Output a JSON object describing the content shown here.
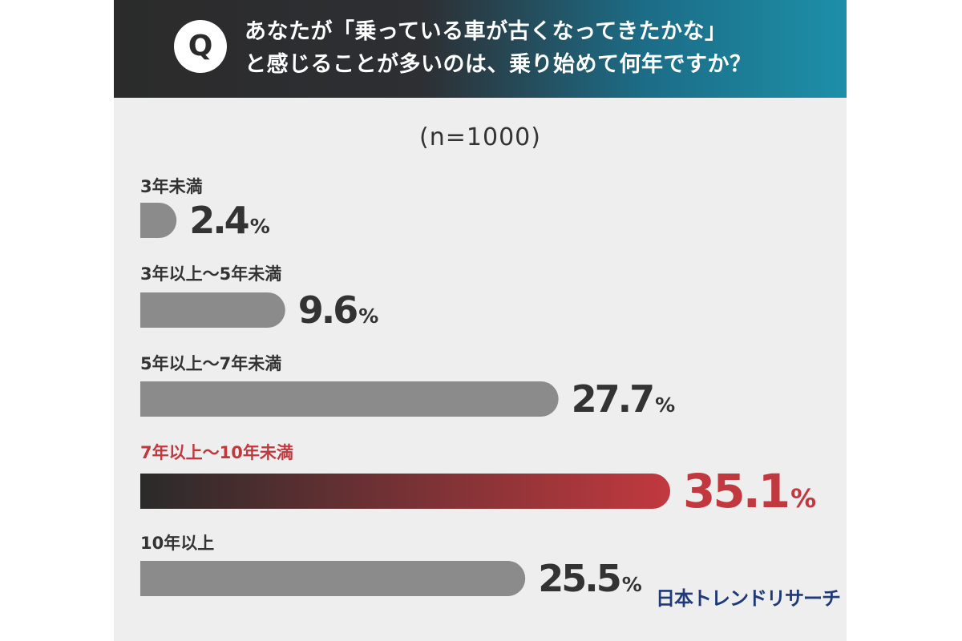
{
  "question": {
    "badge": "Q",
    "line1": "あなたが「乗っている車が古くなってきたかな」",
    "line2": "と感じることが多いのは、乗り始めて何年ですか？"
  },
  "sample_size": "(n=1000)",
  "brand": "日本トレンドリサーチ",
  "colors": {
    "header_dark": "#2b2b2b",
    "header_teal": "#1d8fa8",
    "bar_gray": "#8c8b8c",
    "highlight_red": "#c1393f",
    "highlight_dark": "#2a2a2a",
    "label_text": "#333333",
    "brand_navy": "#1f3a76"
  },
  "chart_data": {
    "type": "bar",
    "orientation": "horizontal",
    "unit": "%",
    "categories": [
      "3年未満",
      "3年以上〜5年未満",
      "5年以上〜7年未満",
      "7年以上〜10年未満",
      "10年以上"
    ],
    "values": [
      2.4,
      9.6,
      27.7,
      35.1,
      25.5
    ],
    "value_labels": [
      "2.4",
      "9.6",
      "27.7",
      "35.1",
      "25.5"
    ],
    "highlight_index": 3,
    "xlim": [
      0,
      35.1
    ],
    "grid": false,
    "legend": "none"
  }
}
